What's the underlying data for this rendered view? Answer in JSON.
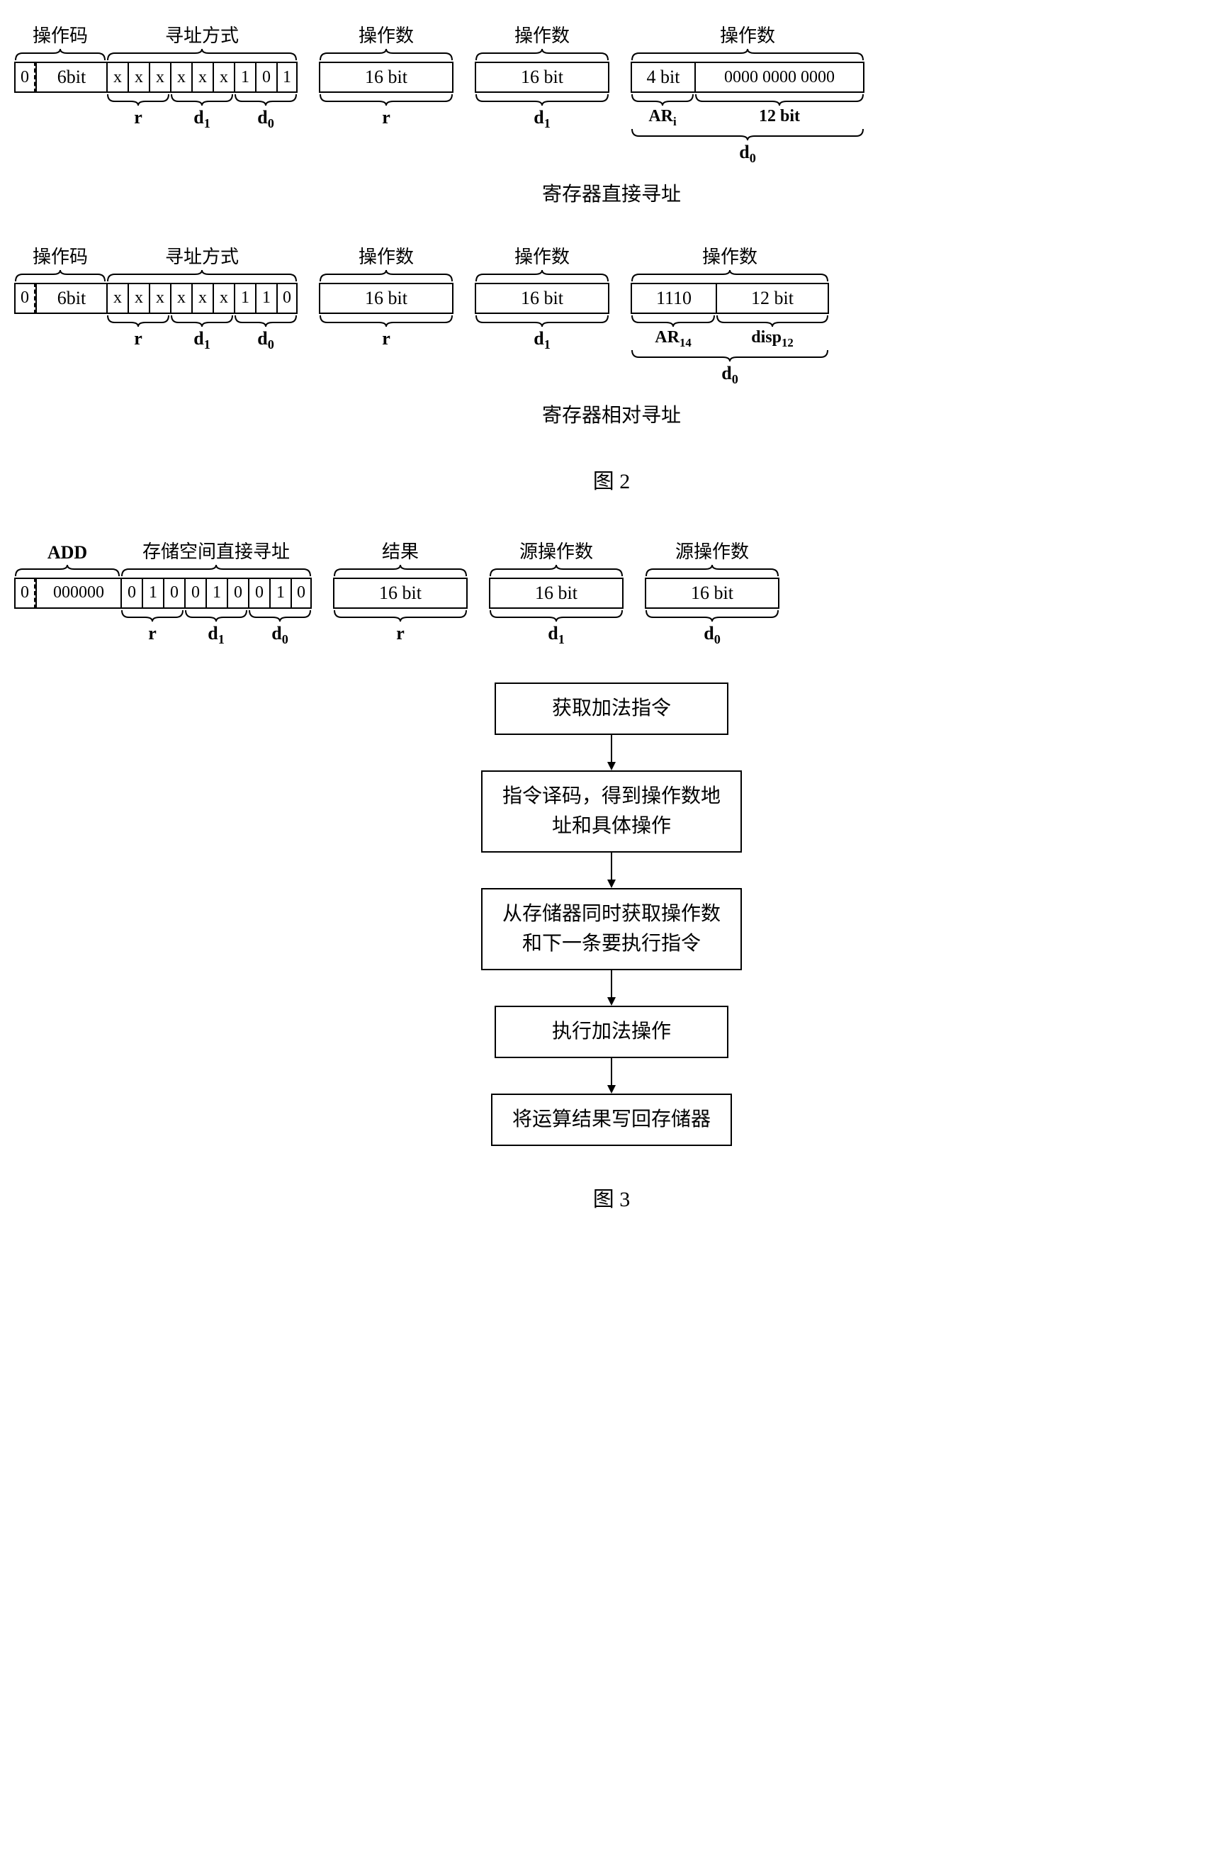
{
  "fig2": {
    "row1": {
      "top_labels": {
        "opcode": "操作码",
        "addrmode": "寻址方式",
        "op_r": "操作数",
        "op_d1": "操作数",
        "op_d0": "操作数"
      },
      "cells": {
        "bit0": "0",
        "opcode": "6bit",
        "r": [
          "x",
          "x",
          "x"
        ],
        "d1": [
          "x",
          "x",
          "x"
        ],
        "d0": [
          "1",
          "0",
          "1"
        ],
        "op_r": "16 bit",
        "op_d1": "16 bit",
        "d0_left": "4 bit",
        "d0_right": "0000  0000  0000"
      },
      "bot_labels": {
        "r": "r",
        "d1": "d",
        "d1_sub": "1",
        "d0": "d",
        "d0_sub": "0",
        "op_r": "r",
        "op_d1": "d",
        "op_d1_sub": "1",
        "d0_left": "AR",
        "d0_left_sub": "i",
        "d0_right": "12 bit",
        "d0_full": "d",
        "d0_full_sub": "0"
      },
      "caption": "寄存器直接寻址"
    },
    "row2": {
      "top_labels": {
        "opcode": "操作码",
        "addrmode": "寻址方式",
        "op_r": "操作数",
        "op_d1": "操作数",
        "op_d0": "操作数"
      },
      "cells": {
        "bit0": "0",
        "opcode": "6bit",
        "r": [
          "x",
          "x",
          "x"
        ],
        "d1": [
          "x",
          "x",
          "x"
        ],
        "d0": [
          "1",
          "1",
          "0"
        ],
        "op_r": "16 bit",
        "op_d1": "16 bit",
        "d0_left": "1110",
        "d0_right": "12 bit"
      },
      "bot_labels": {
        "r": "r",
        "d1": "d",
        "d1_sub": "1",
        "d0": "d",
        "d0_sub": "0",
        "op_r": "r",
        "op_d1": "d",
        "op_d1_sub": "1",
        "d0_left": "AR",
        "d0_left_sub": "14",
        "d0_right": "disp",
        "d0_right_sub": "12",
        "d0_full": "d",
        "d0_full_sub": "0"
      },
      "caption": "寄存器相对寻址"
    },
    "fig_caption": "图 2"
  },
  "fig3": {
    "row": {
      "top_labels": {
        "add": "ADD",
        "addrmode": "存储空间直接寻址",
        "res": "结果",
        "src1": "源操作数",
        "src2": "源操作数"
      },
      "cells": {
        "bit0": "0",
        "opcode": "000000",
        "r": [
          "0",
          "1",
          "0"
        ],
        "d1": [
          "0",
          "1",
          "0"
        ],
        "d0": [
          "0",
          "1",
          "0"
        ],
        "op_r": "16 bit",
        "op_d1": "16 bit",
        "op_d0": "16 bit"
      },
      "bot_labels": {
        "r": "r",
        "d1": "d",
        "d1_sub": "1",
        "d0": "d",
        "d0_sub": "0",
        "op_r": "r",
        "op_d1": "d",
        "op_d1_sub": "1",
        "op_d0": "d",
        "op_d0_sub": "0"
      }
    },
    "flow": [
      "获取加法指令",
      "指令译码，得到操作数地\n址和具体操作",
      "从存储器同时获取操作数\n和下一条要执行指令",
      "执行加法操作",
      "将运算结果写回存储器"
    ],
    "fig_caption": "图 3"
  },
  "style": {
    "brace_stroke": "#000000",
    "brace_stroke_width": 2,
    "arrow_len": 50,
    "colors": {
      "bg": "#ffffff",
      "fg": "#000000"
    }
  }
}
